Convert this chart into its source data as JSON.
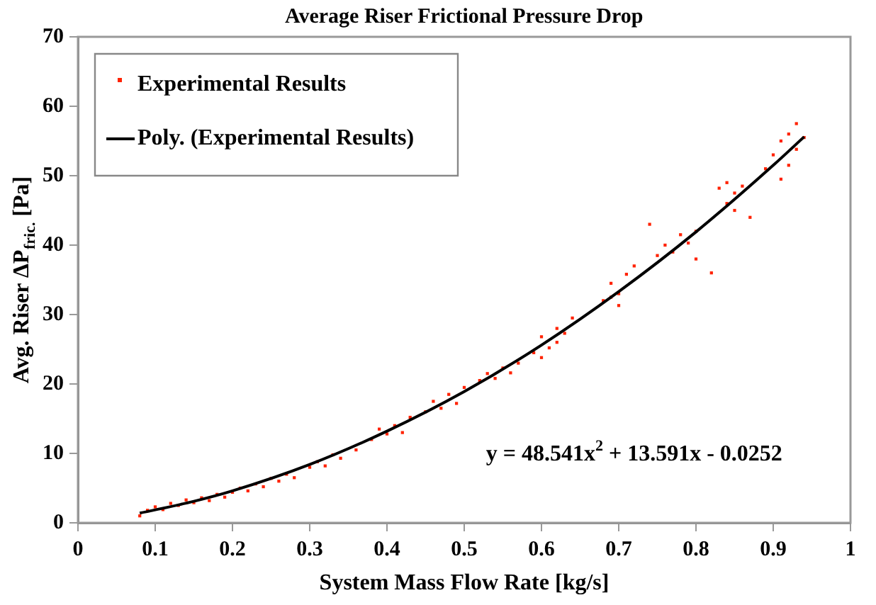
{
  "chart_data": {
    "type": "scatter",
    "title": "Average Riser Frictional Pressure Drop",
    "xlabel": "System Mass Flow Rate [kg/s]",
    "ylabel": "Avg. Riser ΔP$_{fric.}$ [Pa]",
    "xlim": [
      0,
      1
    ],
    "xticks": [
      0,
      0.1,
      0.2,
      0.3,
      0.4,
      0.5,
      0.6,
      0.7,
      0.8,
      0.9,
      1
    ],
    "ylim": [
      0,
      70
    ],
    "yticks": [
      0,
      10,
      20,
      30,
      40,
      50,
      60,
      70
    ],
    "grid": false,
    "legend": "top left",
    "annotations": [
      "y = 48.541x$^{2}$ + 13.591x - 0.0252"
    ],
    "series": [
      {
        "name": "Experimental Results",
        "marker": "square",
        "color": "#ff2200",
        "x": [
          0.08,
          0.09,
          0.1,
          0.11,
          0.12,
          0.13,
          0.14,
          0.15,
          0.16,
          0.17,
          0.18,
          0.19,
          0.2,
          0.21,
          0.22,
          0.23,
          0.24,
          0.25,
          0.26,
          0.27,
          0.28,
          0.3,
          0.31,
          0.32,
          0.33,
          0.34,
          0.36,
          0.38,
          0.39,
          0.4,
          0.41,
          0.42,
          0.43,
          0.45,
          0.46,
          0.47,
          0.48,
          0.49,
          0.5,
          0.52,
          0.53,
          0.54,
          0.55,
          0.56,
          0.57,
          0.59,
          0.6,
          0.61,
          0.62,
          0.62,
          0.63,
          0.64,
          0.6,
          0.68,
          0.69,
          0.7,
          0.7,
          0.71,
          0.69,
          0.72,
          0.74,
          0.75,
          0.76,
          0.77,
          0.78,
          0.79,
          0.8,
          0.8,
          0.82,
          0.83,
          0.84,
          0.85,
          0.85,
          0.86,
          0.87,
          0.84,
          0.9,
          0.91,
          0.92,
          0.92,
          0.93,
          0.93,
          0.94,
          0.89,
          0.91
        ],
        "values": [
          1.0,
          1.8,
          2.3,
          1.9,
          2.8,
          2.5,
          3.3,
          2.9,
          3.6,
          3.2,
          4.1,
          3.7,
          4.4,
          5.0,
          4.6,
          5.6,
          5.2,
          6.4,
          6.0,
          7.0,
          6.5,
          8.0,
          8.8,
          8.2,
          9.8,
          9.3,
          10.5,
          12.0,
          13.5,
          12.8,
          14.0,
          13.0,
          15.2,
          16.0,
          17.5,
          16.5,
          18.5,
          17.2,
          19.5,
          20.5,
          21.5,
          20.8,
          22.3,
          21.6,
          23.0,
          24.5,
          26.8,
          25.2,
          28.0,
          26.0,
          27.3,
          29.5,
          23.8,
          32.0,
          34.5,
          33.0,
          31.3,
          35.8,
          32.5,
          37.0,
          43.0,
          38.5,
          40.0,
          39.0,
          41.5,
          40.3,
          38.0,
          42.0,
          36.0,
          48.2,
          46.0,
          47.5,
          45.0,
          48.5,
          44.0,
          49.0,
          53.0,
          55.0,
          51.5,
          56.0,
          57.5,
          53.8,
          55.5,
          51.0,
          49.5
        ]
      },
      {
        "name": "Poly. (Experimental Results)",
        "type": "line",
        "marker": "none",
        "line_style": "solid",
        "color": "#000000",
        "x": [
          0.08,
          0.15,
          0.2,
          0.3,
          0.4,
          0.5,
          0.6,
          0.7,
          0.8,
          0.9,
          0.94
        ],
        "values": [
          1.4,
          3.1,
          4.6,
          8.4,
          13.2,
          18.9,
          25.6,
          33.3,
          41.9,
          51.5,
          55.6
        ]
      }
    ]
  }
}
